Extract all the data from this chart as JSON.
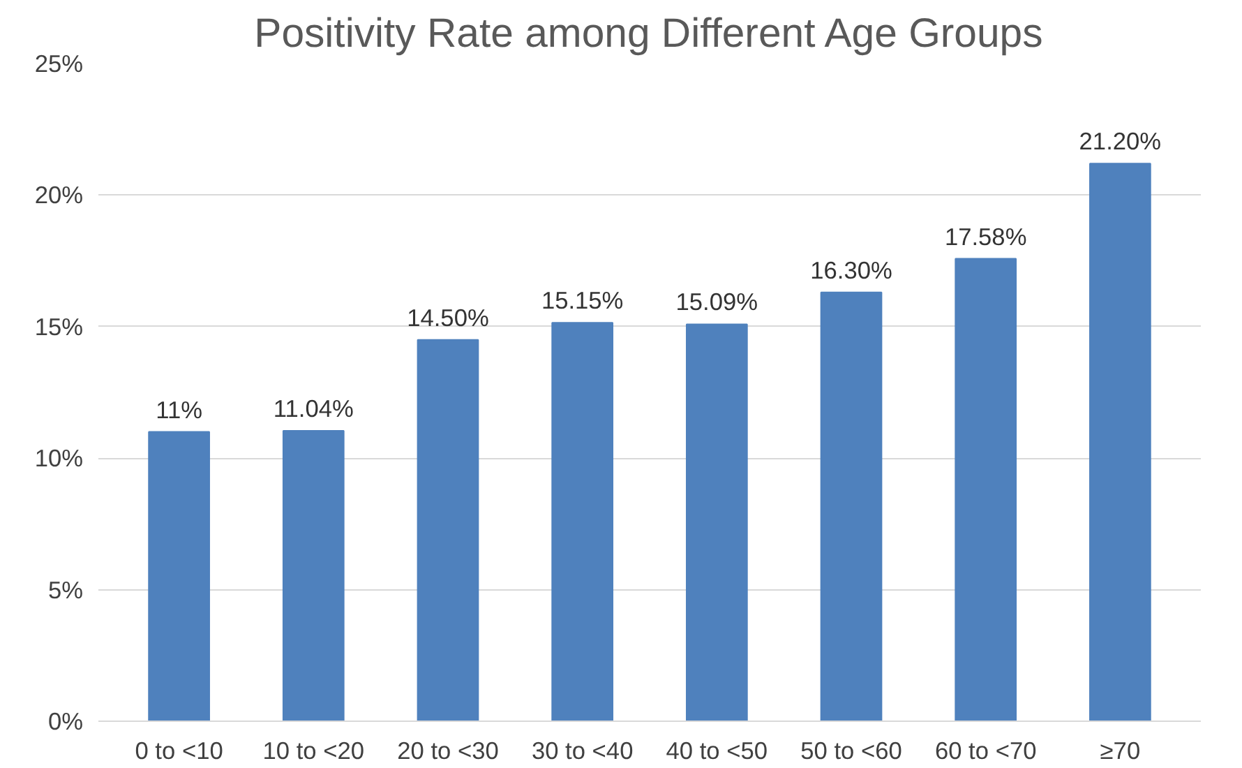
{
  "chart_data": {
    "type": "bar",
    "title": "Positivity Rate among Different Age Groups",
    "categories": [
      "0 to <10",
      "10 to <20",
      "20 to <30",
      "30 to <40",
      "40 to <50",
      "50 to <60",
      "60 to <70",
      "≥70"
    ],
    "values": [
      11,
      11.04,
      14.5,
      15.15,
      15.09,
      16.3,
      17.58,
      21.2
    ],
    "value_labels": [
      "11%",
      "11.04%",
      "14.50%",
      "15.15%",
      "15.09%",
      "16.30%",
      "17.58%",
      "21.20%"
    ],
    "color": "#4f81bd",
    "ylim": [
      0,
      25
    ],
    "yticks": [
      {
        "value": 0,
        "label": "0%"
      },
      {
        "value": 5,
        "label": "5%"
      },
      {
        "value": 10,
        "label": "10%"
      },
      {
        "value": 15,
        "label": "15%"
      },
      {
        "value": 20,
        "label": "20%"
      },
      {
        "value": 25,
        "label": "25%"
      }
    ],
    "grid": "y"
  }
}
